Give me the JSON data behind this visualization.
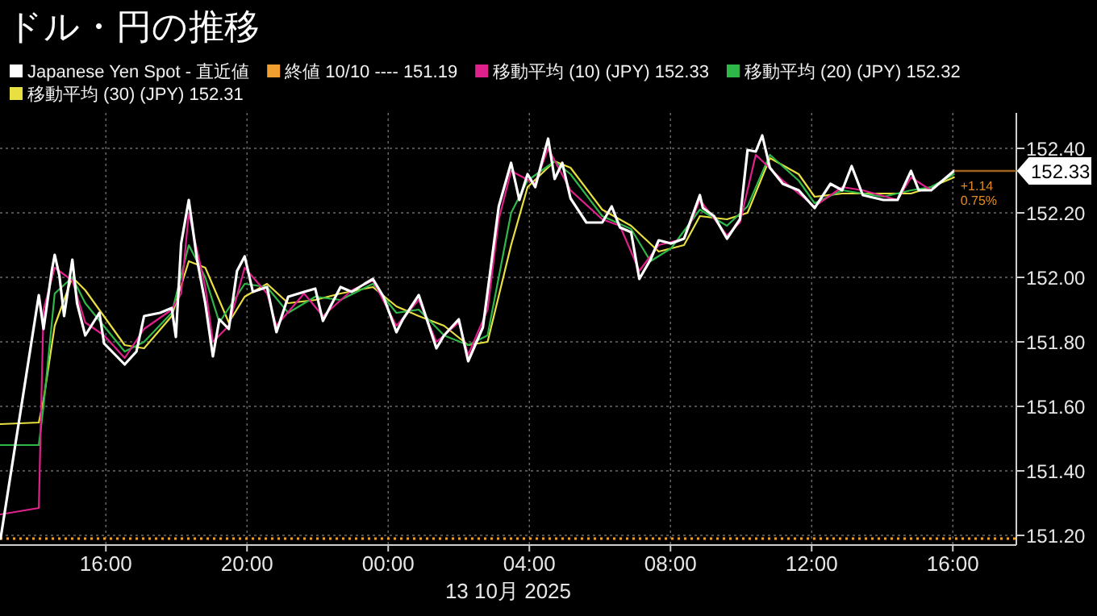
{
  "chart_data": {
    "type": "line",
    "title": "ドル・円の推移",
    "xlabel": "13 10月 2025",
    "xlim": [
      "2025-10-12T13:00",
      "2025-10-13T17:48"
    ],
    "ylim": [
      151.17,
      152.5
    ],
    "xticks": [
      {
        "value": "2025-10-12T16:00",
        "label": "16:00"
      },
      {
        "value": "2025-10-12T20:00",
        "label": "20:00"
      },
      {
        "value": "2025-10-13T00:00",
        "label": "00:00"
      },
      {
        "value": "2025-10-13T04:00",
        "label": "04:00"
      },
      {
        "value": "2025-10-13T08:00",
        "label": "08:00"
      },
      {
        "value": "2025-10-13T12:00",
        "label": "12:00"
      },
      {
        "value": "2025-10-13T16:00",
        "label": "16:00"
      }
    ],
    "yticks": [
      {
        "value": 151.2,
        "label": "151.20"
      },
      {
        "value": 151.4,
        "label": "151.40"
      },
      {
        "value": 151.6,
        "label": "151.60"
      },
      {
        "value": 151.8,
        "label": "151.80"
      },
      {
        "value": 152.0,
        "label": "152.00"
      },
      {
        "value": 152.2,
        "label": "152.20"
      },
      {
        "value": 152.4,
        "label": "152.40"
      }
    ],
    "grid": true,
    "legend": "top",
    "series": [
      {
        "name": "Japanese Yen Spot - 直近値",
        "color": "#ffffff",
        "x": [
          "2025-10-12T13:01",
          "2025-10-12T14:06",
          "2025-10-12T14:14",
          "2025-10-12T14:28",
          "2025-10-12T14:33",
          "2025-10-12T14:41",
          "2025-10-12T14:49",
          "2025-10-12T15:03",
          "2025-10-12T15:11",
          "2025-10-12T15:25",
          "2025-10-12T15:49",
          "2025-10-12T15:57",
          "2025-10-12T16:32",
          "2025-10-12T16:52",
          "2025-10-12T17:05",
          "2025-10-12T17:32",
          "2025-10-12T17:52",
          "2025-10-12T17:59",
          "2025-10-12T18:08",
          "2025-10-12T18:21",
          "2025-10-12T18:35",
          "2025-10-12T18:49",
          "2025-10-12T19:02",
          "2025-10-12T19:13",
          "2025-10-12T19:29",
          "2025-10-12T19:43",
          "2025-10-12T19:56",
          "2025-10-12T20:10",
          "2025-10-12T20:34",
          "2025-10-12T20:50",
          "2025-10-12T21:10",
          "2025-10-12T21:37",
          "2025-10-12T21:56",
          "2025-10-12T22:09",
          "2025-10-12T22:39",
          "2025-10-12T22:58",
          "2025-10-12T23:20",
          "2025-10-12T23:34",
          "2025-10-12T23:52",
          "2025-10-13T00:14",
          "2025-10-13T00:25",
          "2025-10-13T00:52",
          "2025-10-13T01:22",
          "2025-10-13T01:35",
          "2025-10-13T02:00",
          "2025-10-13T02:16",
          "2025-10-13T02:41",
          "2025-10-13T02:49",
          "2025-10-13T03:08",
          "2025-10-13T03:29",
          "2025-10-13T03:43",
          "2025-10-13T03:57",
          "2025-10-13T04:10",
          "2025-10-13T04:32",
          "2025-10-13T04:43",
          "2025-10-13T04:56",
          "2025-10-13T05:10",
          "2025-10-13T05:37",
          "2025-10-13T06:04",
          "2025-10-13T06:20",
          "2025-10-13T06:34",
          "2025-10-13T06:53",
          "2025-10-13T07:07",
          "2025-10-13T07:26",
          "2025-10-13T07:40",
          "2025-10-13T08:01",
          "2025-10-13T08:23",
          "2025-10-13T08:50",
          "2025-10-13T08:55",
          "2025-10-13T09:14",
          "2025-10-13T09:36",
          "2025-10-13T09:58",
          "2025-10-13T10:11",
          "2025-10-13T10:25",
          "2025-10-13T10:36",
          "2025-10-13T10:49",
          "2025-10-13T11:11",
          "2025-10-13T11:38",
          "2025-10-13T12:05",
          "2025-10-13T12:32",
          "2025-10-13T12:52",
          "2025-10-13T13:08",
          "2025-10-13T13:27",
          "2025-10-13T14:02",
          "2025-10-13T14:26",
          "2025-10-13T14:49",
          "2025-10-13T15:02",
          "2025-10-13T15:23",
          "2025-10-13T16:02"
        ],
        "values": [
          151.19,
          151.945,
          151.84,
          152.02,
          152.07,
          152.005,
          151.88,
          152.055,
          151.92,
          151.82,
          151.89,
          151.795,
          151.73,
          151.77,
          151.88,
          151.89,
          151.905,
          151.815,
          152.105,
          152.24,
          152.055,
          151.92,
          151.755,
          151.87,
          151.84,
          152.02,
          152.065,
          151.955,
          151.97,
          151.83,
          151.94,
          151.955,
          151.965,
          151.865,
          151.97,
          151.955,
          151.98,
          151.995,
          151.94,
          151.83,
          151.87,
          151.945,
          151.78,
          151.82,
          151.87,
          151.74,
          151.845,
          151.955,
          152.22,
          152.355,
          152.24,
          152.32,
          152.28,
          152.43,
          152.305,
          152.355,
          152.245,
          152.17,
          152.17,
          152.22,
          152.155,
          152.14,
          151.995,
          152.055,
          152.115,
          152.105,
          152.12,
          152.255,
          152.215,
          152.19,
          152.12,
          152.18,
          152.395,
          152.39,
          152.44,
          152.34,
          152.29,
          152.27,
          152.215,
          152.29,
          152.27,
          152.345,
          152.255,
          152.24,
          152.24,
          152.33,
          152.27,
          152.27,
          152.33
        ]
      },
      {
        "name": "移動平均 (10) (JPY) 152.33",
        "color": "#e0208c",
        "x": [
          "2025-10-12T13:01",
          "2025-10-12T14:06",
          "2025-10-12T14:14",
          "2025-10-12T14:33",
          "2025-10-12T15:03",
          "2025-10-12T15:25",
          "2025-10-12T15:57",
          "2025-10-12T16:32",
          "2025-10-12T17:05",
          "2025-10-12T17:52",
          "2025-10-12T18:08",
          "2025-10-12T18:21",
          "2025-10-12T18:49",
          "2025-10-12T19:02",
          "2025-10-12T19:29",
          "2025-10-12T19:56",
          "2025-10-12T20:34",
          "2025-10-12T20:50",
          "2025-10-12T21:37",
          "2025-10-12T22:09",
          "2025-10-12T22:58",
          "2025-10-12T23:34",
          "2025-10-13T00:14",
          "2025-10-13T00:52",
          "2025-10-13T01:22",
          "2025-10-13T02:00",
          "2025-10-13T02:16",
          "2025-10-13T02:49",
          "2025-10-13T03:08",
          "2025-10-13T03:29",
          "2025-10-13T04:10",
          "2025-10-13T04:32",
          "2025-10-13T05:10",
          "2025-10-13T06:04",
          "2025-10-13T06:34",
          "2025-10-13T07:07",
          "2025-10-13T07:40",
          "2025-10-13T08:23",
          "2025-10-13T08:50",
          "2025-10-13T09:36",
          "2025-10-13T09:58",
          "2025-10-13T10:25",
          "2025-10-13T11:11",
          "2025-10-13T12:05",
          "2025-10-13T12:52",
          "2025-10-13T13:27",
          "2025-10-13T14:26",
          "2025-10-13T14:49",
          "2025-10-13T15:23",
          "2025-10-13T16:02"
        ],
        "values": [
          151.265,
          151.285,
          151.9,
          152.03,
          151.99,
          151.86,
          151.82,
          151.75,
          151.84,
          151.9,
          151.95,
          152.2,
          151.97,
          151.8,
          151.85,
          152.03,
          151.95,
          151.85,
          151.95,
          151.88,
          151.96,
          151.99,
          151.85,
          151.93,
          151.8,
          151.86,
          151.76,
          151.9,
          152.18,
          152.33,
          152.29,
          152.4,
          152.27,
          152.18,
          152.16,
          152.02,
          152.1,
          152.12,
          152.24,
          152.13,
          152.17,
          152.38,
          152.3,
          152.22,
          152.28,
          152.27,
          152.24,
          152.31,
          152.27,
          152.33
        ]
      },
      {
        "name": "移動平均 (20) (JPY) 152.32",
        "color": "#2fb84a",
        "x": [
          "2025-10-12T13:01",
          "2025-10-12T14:06",
          "2025-10-12T14:14",
          "2025-10-12T14:33",
          "2025-10-12T15:03",
          "2025-10-12T15:25",
          "2025-10-12T16:32",
          "2025-10-12T17:05",
          "2025-10-12T17:52",
          "2025-10-12T18:21",
          "2025-10-12T18:49",
          "2025-10-12T19:13",
          "2025-10-12T19:56",
          "2025-10-12T20:34",
          "2025-10-12T21:10",
          "2025-10-12T21:56",
          "2025-10-12T22:39",
          "2025-10-12T23:34",
          "2025-10-13T00:14",
          "2025-10-13T00:52",
          "2025-10-13T01:35",
          "2025-10-13T02:16",
          "2025-10-13T02:49",
          "2025-10-13T03:29",
          "2025-10-13T03:57",
          "2025-10-13T04:43",
          "2025-10-13T05:10",
          "2025-10-13T06:04",
          "2025-10-13T06:53",
          "2025-10-13T07:26",
          "2025-10-13T08:01",
          "2025-10-13T08:50",
          "2025-10-13T09:36",
          "2025-10-13T10:11",
          "2025-10-13T10:49",
          "2025-10-13T11:38",
          "2025-10-13T12:05",
          "2025-10-13T12:52",
          "2025-10-13T14:02",
          "2025-10-13T14:49",
          "2025-10-13T15:23",
          "2025-10-13T16:02"
        ],
        "values": [
          151.48,
          151.48,
          151.6,
          151.95,
          152.0,
          151.92,
          151.77,
          151.8,
          151.89,
          152.1,
          152.0,
          151.86,
          151.98,
          151.97,
          151.89,
          151.94,
          151.93,
          151.98,
          151.89,
          151.9,
          151.82,
          151.79,
          151.82,
          152.2,
          152.3,
          152.36,
          152.32,
          152.19,
          152.15,
          152.05,
          152.09,
          152.21,
          152.16,
          152.22,
          152.38,
          152.3,
          152.23,
          152.27,
          152.25,
          152.27,
          152.28,
          152.32
        ]
      },
      {
        "name": "移動平均 (30) (JPY) 152.31",
        "color": "#e8e040",
        "x": [
          "2025-10-12T13:01",
          "2025-10-12T14:06",
          "2025-10-12T14:14",
          "2025-10-12T14:33",
          "2025-10-12T15:03",
          "2025-10-12T15:25",
          "2025-10-12T16:32",
          "2025-10-12T17:05",
          "2025-10-12T17:52",
          "2025-10-12T18:21",
          "2025-10-12T18:49",
          "2025-10-12T19:29",
          "2025-10-12T19:56",
          "2025-10-12T20:34",
          "2025-10-12T21:10",
          "2025-10-12T21:56",
          "2025-10-12T22:39",
          "2025-10-12T23:34",
          "2025-10-13T00:14",
          "2025-10-13T00:52",
          "2025-10-13T01:35",
          "2025-10-13T02:16",
          "2025-10-13T02:49",
          "2025-10-13T03:29",
          "2025-10-13T03:57",
          "2025-10-13T04:43",
          "2025-10-13T05:10",
          "2025-10-13T06:04",
          "2025-10-13T06:53",
          "2025-10-13T07:40",
          "2025-10-13T08:23",
          "2025-10-13T08:50",
          "2025-10-13T09:36",
          "2025-10-13T10:11",
          "2025-10-13T10:49",
          "2025-10-13T11:38",
          "2025-10-13T12:05",
          "2025-10-13T12:52",
          "2025-10-13T14:02",
          "2025-10-13T14:49",
          "2025-10-13T15:23",
          "2025-10-13T16:02"
        ],
        "values": [
          151.545,
          151.55,
          151.62,
          151.85,
          152.0,
          151.96,
          151.79,
          151.78,
          151.88,
          152.05,
          152.03,
          151.86,
          151.94,
          151.98,
          151.92,
          151.93,
          151.95,
          151.97,
          151.91,
          151.88,
          151.85,
          151.79,
          151.8,
          152.1,
          152.28,
          152.36,
          152.34,
          152.21,
          152.16,
          152.08,
          152.1,
          152.19,
          152.18,
          152.2,
          152.37,
          152.32,
          152.25,
          152.26,
          152.26,
          152.26,
          152.28,
          152.31
        ]
      }
    ],
    "ref_lines": [
      {
        "axis": "y",
        "value": 151.19,
        "label": "終値 10/10 ---- 151.19",
        "color": "#f0a030",
        "line_style": "dotted"
      }
    ],
    "annotations": [
      {
        "text": "152.33",
        "x": "2025-10-13T16:02",
        "y": 152.33
      },
      {
        "text": "+1.14",
        "x": "2025-10-13T16:02",
        "y": 152.33
      },
      {
        "text": "0.75%",
        "x": "2025-10-13T16:02",
        "y": 152.33
      }
    ]
  }
}
